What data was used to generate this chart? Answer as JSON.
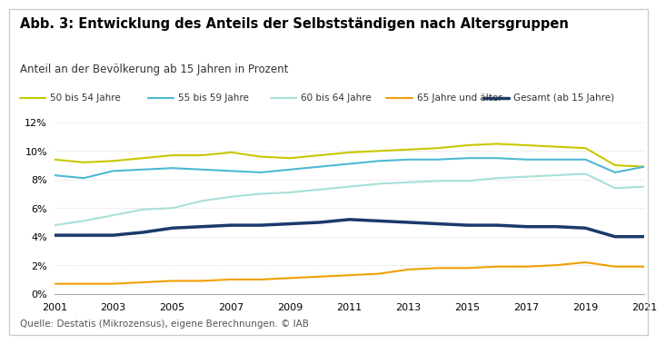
{
  "title": "Abb. 3: Entwicklung des Anteils der Selbstständigen nach Altersgruppen",
  "subtitle": "Anteil an der Bevölkerung ab 15 Jahren in Prozent",
  "source": "Quelle: Destatis (Mikrozensus), eigene Berechnungen. © IAB",
  "years": [
    2001,
    2002,
    2003,
    2004,
    2005,
    2006,
    2007,
    2008,
    2009,
    2010,
    2011,
    2012,
    2013,
    2014,
    2015,
    2016,
    2017,
    2018,
    2019,
    2020,
    2021
  ],
  "series": {
    "50 bis 54 Jahre": {
      "color": "#c8c800",
      "linewidth": 1.5,
      "values": [
        9.4,
        9.2,
        9.3,
        9.5,
        9.7,
        9.7,
        9.9,
        9.6,
        9.5,
        9.7,
        9.9,
        10.0,
        10.1,
        10.2,
        10.4,
        10.5,
        10.4,
        10.3,
        10.2,
        9.0,
        8.9
      ]
    },
    "55 bis 59 Jahre": {
      "color": "#4db8d4",
      "linewidth": 1.5,
      "values": [
        8.3,
        8.1,
        8.6,
        8.7,
        8.8,
        8.7,
        8.6,
        8.5,
        8.7,
        8.9,
        9.1,
        9.3,
        9.4,
        9.4,
        9.5,
        9.5,
        9.4,
        9.4,
        9.4,
        8.5,
        8.9
      ]
    },
    "60 bis 64 Jahre": {
      "color": "#a8e0d8",
      "linewidth": 1.5,
      "values": [
        4.8,
        5.1,
        5.5,
        5.9,
        6.0,
        6.5,
        6.8,
        7.0,
        7.1,
        7.3,
        7.5,
        7.7,
        7.8,
        7.9,
        7.9,
        8.1,
        8.2,
        8.3,
        8.4,
        7.4,
        7.5
      ]
    },
    "65 Jahre und älter": {
      "color": "#f0a000",
      "linewidth": 1.5,
      "values": [
        0.7,
        0.7,
        0.7,
        0.8,
        0.9,
        0.9,
        1.0,
        1.0,
        1.1,
        1.2,
        1.3,
        1.4,
        1.7,
        1.8,
        1.8,
        1.9,
        1.9,
        2.0,
        2.2,
        1.9,
        1.9
      ]
    },
    "Gesamt (ab 15 Jahre)": {
      "color": "#1a3a6b",
      "linewidth": 2.5,
      "values": [
        4.1,
        4.1,
        4.1,
        4.3,
        4.6,
        4.7,
        4.8,
        4.8,
        4.9,
        5.0,
        5.2,
        5.1,
        5.0,
        4.9,
        4.8,
        4.8,
        4.7,
        4.7,
        4.6,
        4.0,
        4.0
      ]
    }
  },
  "ylim": [
    0,
    12
  ],
  "yticks": [
    0,
    2,
    4,
    6,
    8,
    10,
    12
  ],
  "ytick_labels": [
    "0%",
    "2%",
    "4%",
    "6%",
    "8%",
    "10%",
    "12%"
  ],
  "xticks": [
    2001,
    2003,
    2005,
    2007,
    2009,
    2011,
    2013,
    2015,
    2017,
    2019,
    2021
  ],
  "xlim": [
    2001,
    2021
  ],
  "background_color": "#ffffff",
  "border_color": "#cccccc"
}
